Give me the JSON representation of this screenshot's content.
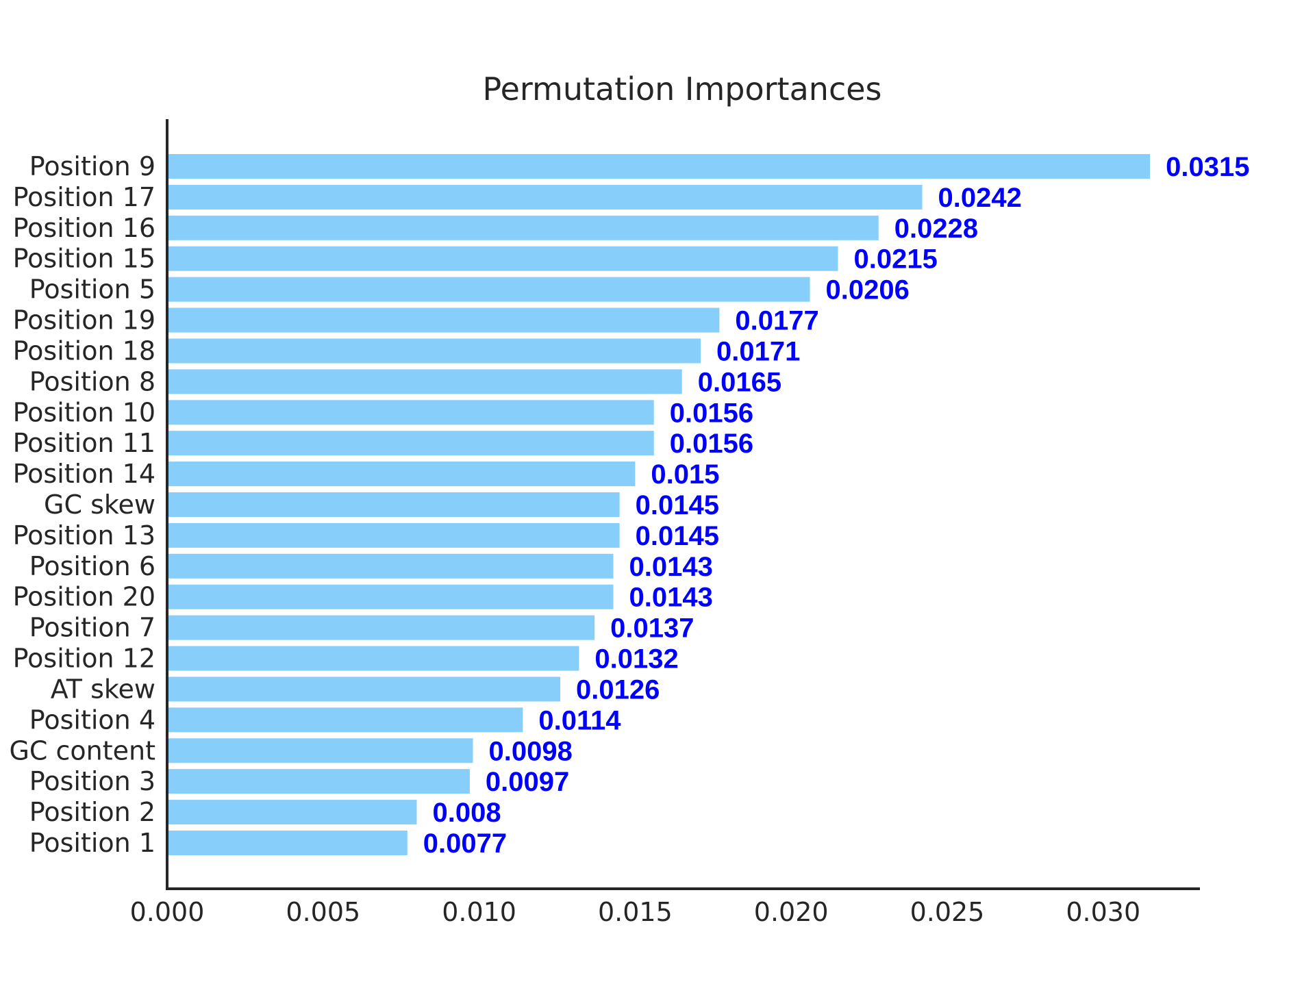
{
  "chart_data": {
    "type": "bar",
    "orientation": "horizontal",
    "title": "Permutation Importances",
    "xlabel": "",
    "ylabel": "",
    "categories": [
      "Position 9",
      "Position 17",
      "Position 16",
      "Position 15",
      "Position 5",
      "Position 19",
      "Position 18",
      "Position 8",
      "Position 10",
      "Position 11",
      "Position 14",
      "GC skew",
      "Position 13",
      "Position 6",
      "Position 20",
      "Position 7",
      "Position 12",
      "AT skew",
      "Position 4",
      "GC content",
      "Position 3",
      "Position 2",
      "Position 1"
    ],
    "values": [
      0.0315,
      0.0242,
      0.0228,
      0.0215,
      0.0206,
      0.0177,
      0.0171,
      0.0165,
      0.0156,
      0.0156,
      0.015,
      0.0145,
      0.0145,
      0.0143,
      0.0143,
      0.0137,
      0.0132,
      0.0126,
      0.0114,
      0.0098,
      0.0097,
      0.008,
      0.0077
    ],
    "value_labels": [
      "0.0315",
      "0.0242",
      "0.0228",
      "0.0215",
      "0.0206",
      "0.0177",
      "0.0171",
      "0.0165",
      "0.0156",
      "0.0156",
      "0.015",
      "0.0145",
      "0.0145",
      "0.0143",
      "0.0143",
      "0.0137",
      "0.0132",
      "0.0126",
      "0.0114",
      "0.0098",
      "0.0097",
      "0.008",
      "0.0077"
    ],
    "xlim": [
      0.0,
      0.0331
    ],
    "xticks": [
      0.0,
      0.005,
      0.01,
      0.015,
      0.02,
      0.025,
      0.03
    ],
    "xtick_labels": [
      "0.000",
      "0.005",
      "0.010",
      "0.015",
      "0.020",
      "0.025",
      "0.030"
    ],
    "grid": false,
    "colors": {
      "bar": "#87cefa",
      "value_label": "#0000ff",
      "axis": "#262626",
      "text": "#262626",
      "background": "#ffffff"
    }
  }
}
